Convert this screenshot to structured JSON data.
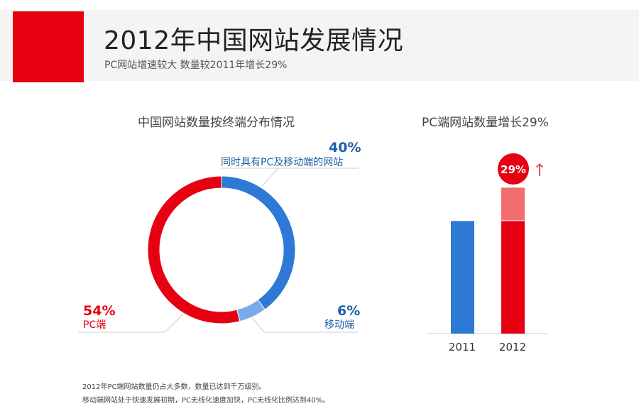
{
  "header": {
    "title": "2012年中国网站发展情况",
    "subtitle": "PC网站增速较大  数量较2011年增长29%"
  },
  "colors": {
    "red": "#e60012",
    "light_red": "#f26d6d",
    "blue": "#2f79d6",
    "light_blue": "#7aaaea",
    "label_blue": "#1e5fa8"
  },
  "chart_data": [
    {
      "type": "pie",
      "title": "中国网站数量按终端分布情况",
      "donut": true,
      "slices": [
        {
          "label": "同时具有PC及移动端的网站",
          "value": 40,
          "display": "40%"
        },
        {
          "label": "移动端",
          "value": 6,
          "display": "6%"
        },
        {
          "label": "PC端",
          "value": 54,
          "display": "54%"
        }
      ]
    },
    {
      "type": "bar",
      "title": "PC端网站数量增长29%",
      "categories": [
        "2011",
        "2012"
      ],
      "values": [
        100,
        129
      ],
      "growth_segment": 29,
      "growth_badge": "29%",
      "growth_arrow": "↑",
      "ylim": [
        0,
        145
      ]
    }
  ],
  "footnotes": [
    "2012年PC端网站数量仍占大多数，数量已达到千万级别。",
    "移动端网站处于快速发展初期，PC无线化速度加快，PC无线化比例达到40%。"
  ]
}
